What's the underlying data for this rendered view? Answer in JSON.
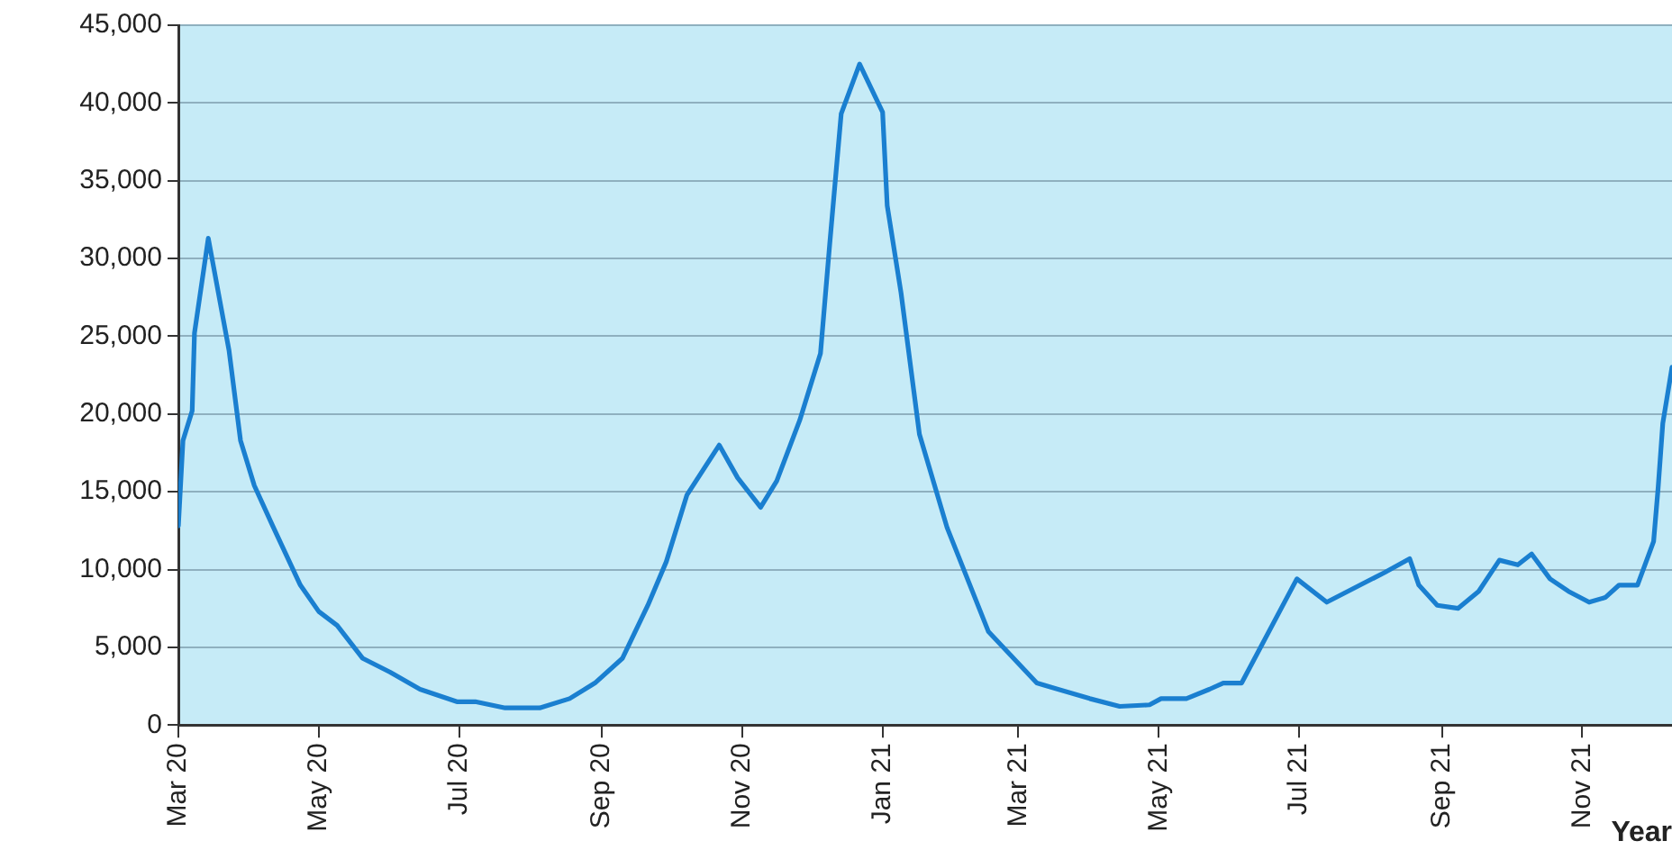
{
  "chart_data": {
    "type": "line",
    "xlabel": "Year",
    "x": [
      "2020-03-01",
      "2020-03-03",
      "2020-03-07",
      "2020-03-08",
      "2020-03-14",
      "2020-03-23",
      "2020-03-28",
      "2020-04-03",
      "2020-04-11",
      "2020-04-23",
      "2020-05-01",
      "2020-05-09",
      "2020-05-20",
      "2020-06-01",
      "2020-06-14",
      "2020-06-30",
      "2020-07-08",
      "2020-07-21",
      "2020-08-05",
      "2020-08-18",
      "2020-08-29",
      "2020-09-10",
      "2020-09-21",
      "2020-09-29",
      "2020-10-08",
      "2020-10-22",
      "2020-10-30",
      "2020-11-09",
      "2020-11-16",
      "2020-11-26",
      "2020-12-05",
      "2020-12-09",
      "2020-12-14",
      "2020-12-22",
      "2021-01-01",
      "2021-01-03",
      "2021-01-09",
      "2021-01-17",
      "2021-01-29",
      "2021-02-16",
      "2021-03-09",
      "2021-04-01",
      "2021-04-14",
      "2021-04-27",
      "2021-05-02",
      "2021-05-13",
      "2021-05-23",
      "2021-05-29",
      "2021-06-06",
      "2021-06-30",
      "2021-07-13",
      "2021-08-07",
      "2021-08-18",
      "2021-08-22",
      "2021-08-30",
      "2021-09-08",
      "2021-09-17",
      "2021-09-26",
      "2021-10-04",
      "2021-10-10",
      "2021-10-18",
      "2021-10-26",
      "2021-11-04",
      "2021-11-11",
      "2021-11-17",
      "2021-11-25",
      "2021-12-02",
      "2021-12-04",
      "2021-12-06",
      "2021-12-10"
    ],
    "series": [
      {
        "color": "#1a7fd0",
        "values": [
          12800,
          18300,
          20200,
          25200,
          31300,
          24100,
          18300,
          15400,
          12800,
          9000,
          7300,
          6400,
          4300,
          3400,
          2300,
          1500,
          1500,
          1100,
          1100,
          1700,
          2700,
          4300,
          7700,
          10500,
          14800,
          18000,
          15900,
          14000,
          15700,
          19600,
          23900,
          30900,
          39300,
          42500,
          39400,
          33400,
          27800,
          18700,
          12700,
          6000,
          2700,
          1700,
          1200,
          1300,
          1700,
          1700,
          2300,
          2700,
          2700,
          9400,
          7900,
          9800,
          10700,
          9000,
          7700,
          7500,
          8600,
          10600,
          10300,
          11000,
          9400,
          8600,
          7900,
          8200,
          9000,
          9000,
          11800,
          15300,
          19400,
          23000
        ]
      }
    ],
    "xlim": [
      "2020-03-01",
      "2021-12-10"
    ],
    "xticks": [
      {
        "value": "2020-03-01",
        "label": "Mar 20"
      },
      {
        "value": "2020-05-01",
        "label": "May 20"
      },
      {
        "value": "2020-07-01",
        "label": "Jul 20"
      },
      {
        "value": "2020-09-01",
        "label": "Sep 20"
      },
      {
        "value": "2020-11-01",
        "label": "Nov 20"
      },
      {
        "value": "2021-01-01",
        "label": "Jan 21"
      },
      {
        "value": "2021-03-01",
        "label": "Mar 21"
      },
      {
        "value": "2021-05-01",
        "label": "May 21"
      },
      {
        "value": "2021-07-01",
        "label": "Jul 21"
      },
      {
        "value": "2021-09-01",
        "label": "Sep 21"
      },
      {
        "value": "2021-11-01",
        "label": "Nov 21"
      }
    ],
    "ylim": [
      0,
      45000
    ],
    "yticks": [
      0,
      {
        "value": 5000,
        "label": "5,000"
      },
      {
        "value": 10000,
        "label": "10,000"
      },
      {
        "value": 15000,
        "label": "15,000"
      },
      {
        "value": 20000,
        "label": "20,000"
      },
      {
        "value": 25000,
        "label": "25,000"
      },
      {
        "value": 30000,
        "label": "30,000"
      },
      {
        "value": 35000,
        "label": "35,000"
      },
      {
        "value": 40000,
        "label": "40,000"
      },
      {
        "value": 45000,
        "label": "45,000"
      }
    ],
    "grid": "y",
    "legend": false,
    "marker": "none",
    "line_style": "solid"
  }
}
